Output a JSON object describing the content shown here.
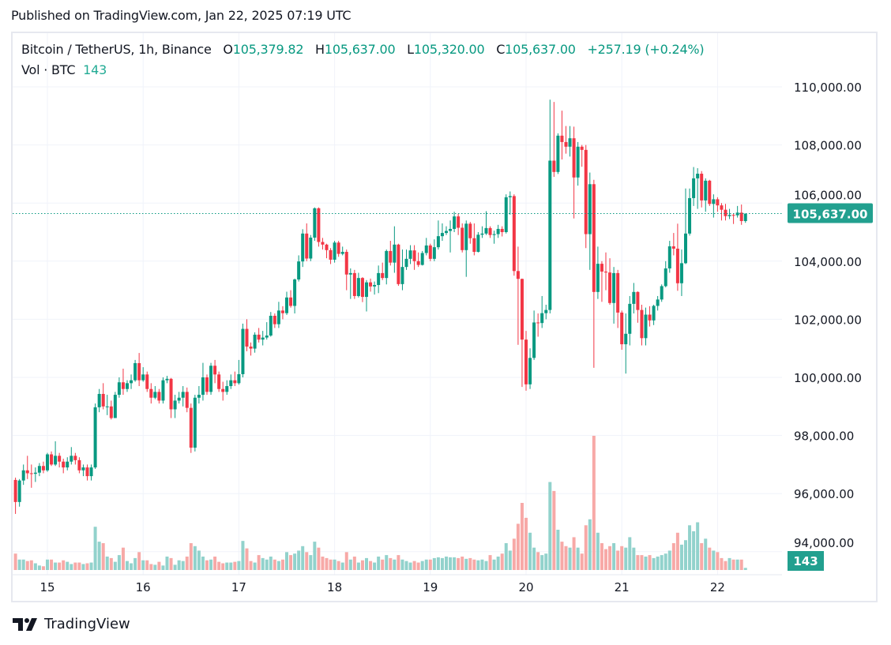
{
  "published": "Published on TradingView.com, Jan 22, 2025 07:19 UTC",
  "legend": {
    "symbol": "Bitcoin / TetherUS, 1h, Binance",
    "o_label": "O",
    "o_value": "105,379.82",
    "h_label": "H",
    "h_value": "105,637.00",
    "l_label": "L",
    "l_value": "105,320.00",
    "c_label": "C",
    "c_value": "105,637.00",
    "change": "+257.19 (+0.24%)",
    "vol_label": "Vol · BTC",
    "vol_value": "143"
  },
  "logo": {
    "text": "TradingView",
    "icon": "tradingview-logo-icon"
  },
  "colors": {
    "up": "#089981",
    "down": "#f23645",
    "vol_up": "#92d2cc",
    "vol_down": "#f7a9a7",
    "grid": "#f0f3fa",
    "badge": "#22a08f"
  },
  "chart_data": {
    "type": "candlestick",
    "interval": "1h",
    "x_ticks": [
      "15",
      "16",
      "17",
      "18",
      "19",
      "20",
      "21",
      "22"
    ],
    "y_ticks": [
      "110,000.00",
      "108,000.00",
      "106,000.00",
      "104,000.00",
      "102,000.00",
      "100,000.00",
      "98,000.00",
      "96,000.00",
      "94,000.00"
    ],
    "y_tick_values": [
      110000,
      108000,
      106000,
      104000,
      102000,
      100000,
      98000,
      96000,
      94000
    ],
    "last_price_label": "105,637.00",
    "last_price": 105637,
    "last_volume_label": "143",
    "grid": true,
    "columns": [
      "open",
      "high",
      "low",
      "close",
      "volume"
    ],
    "candles": [
      [
        96470,
        96550,
        95300,
        95710,
        1100
      ],
      [
        95710,
        96500,
        95550,
        96450,
        700
      ],
      [
        96450,
        97000,
        96300,
        96800,
        700
      ],
      [
        96800,
        97300,
        96500,
        96700,
        600
      ],
      [
        96700,
        97000,
        96200,
        96680,
        650
      ],
      [
        96680,
        96900,
        96400,
        96720,
        450
      ],
      [
        96720,
        97050,
        96600,
        96950,
        300
      ],
      [
        96950,
        97100,
        96700,
        96800,
        250
      ],
      [
        96800,
        97400,
        96750,
        97350,
        700
      ],
      [
        97350,
        97450,
        96950,
        97000,
        700
      ],
      [
        97000,
        97800,
        96950,
        97300,
        500
      ],
      [
        97300,
        97400,
        96900,
        97100,
        500
      ],
      [
        97100,
        97200,
        96700,
        96900,
        650
      ],
      [
        96900,
        97250,
        96800,
        97100,
        550
      ],
      [
        97100,
        97600,
        97000,
        97300,
        400
      ],
      [
        97300,
        97400,
        97000,
        97150,
        500
      ],
      [
        97150,
        97250,
        96700,
        96800,
        500
      ],
      [
        96800,
        97000,
        96600,
        96900,
        400
      ],
      [
        96900,
        97000,
        96450,
        96600,
        450
      ],
      [
        96600,
        97000,
        96450,
        96900,
        500
      ],
      [
        96900,
        99100,
        96850,
        98970,
        2900
      ],
      [
        98970,
        99600,
        98800,
        99430,
        1900
      ],
      [
        99430,
        99800,
        98900,
        99000,
        1800
      ],
      [
        99000,
        99400,
        98700,
        99000,
        900
      ],
      [
        99000,
        99200,
        98550,
        98600,
        800
      ],
      [
        98600,
        99500,
        98600,
        99400,
        550
      ],
      [
        99400,
        100000,
        99300,
        99830,
        1000
      ],
      [
        99830,
        100300,
        99400,
        99600,
        1500
      ],
      [
        99600,
        99900,
        99500,
        99800,
        600
      ],
      [
        99800,
        100100,
        99600,
        99900,
        450
      ],
      [
        99900,
        100600,
        99850,
        100490,
        800
      ],
      [
        100490,
        100840,
        99700,
        99900,
        1200
      ],
      [
        99900,
        100350,
        99850,
        100100,
        650
      ],
      [
        100100,
        100200,
        99500,
        99600,
        650
      ],
      [
        99600,
        99800,
        99100,
        99300,
        400
      ],
      [
        99300,
        99700,
        99250,
        99500,
        350
      ],
      [
        99500,
        99600,
        99100,
        99200,
        550
      ],
      [
        99200,
        100000,
        99100,
        99900,
        300
      ],
      [
        99900,
        100050,
        99800,
        99950,
        900
      ],
      [
        99950,
        99980,
        98600,
        98900,
        800
      ],
      [
        98900,
        99400,
        98600,
        99200,
        350
      ],
      [
        99200,
        99500,
        99100,
        99300,
        650
      ],
      [
        99300,
        99700,
        99000,
        99500,
        600
      ],
      [
        99500,
        99650,
        98800,
        98950,
        900
      ],
      [
        98950,
        99100,
        97400,
        97580,
        1800
      ],
      [
        97580,
        99400,
        97450,
        99300,
        1600
      ],
      [
        99300,
        99700,
        99100,
        99400,
        1300
      ],
      [
        99400,
        100500,
        99200,
        100000,
        900
      ],
      [
        100000,
        100100,
        99400,
        99500,
        650
      ],
      [
        99500,
        100500,
        99400,
        100400,
        700
      ],
      [
        100400,
        100600,
        99800,
        100100,
        900
      ],
      [
        100100,
        100200,
        99500,
        99600,
        550
      ],
      [
        99600,
        99850,
        99200,
        99500,
        450
      ],
      [
        99500,
        99900,
        99400,
        99700,
        500
      ],
      [
        99700,
        100100,
        99600,
        99900,
        500
      ],
      [
        99900,
        100200,
        99700,
        99800,
        550
      ],
      [
        99800,
        100600,
        99750,
        100110,
        600
      ],
      [
        100110,
        101850,
        100000,
        101670,
        1950
      ],
      [
        101670,
        102000,
        100900,
        101060,
        1450
      ],
      [
        101060,
        101200,
        100750,
        100990,
        600
      ],
      [
        100990,
        101550,
        100850,
        101470,
        500
      ],
      [
        101470,
        101700,
        101200,
        101300,
        1000
      ],
      [
        101300,
        101600,
        101100,
        101370,
        800
      ],
      [
        101370,
        101900,
        101300,
        101440,
        700
      ],
      [
        101440,
        102250,
        101400,
        102120,
        900
      ],
      [
        102120,
        102200,
        101700,
        101830,
        700
      ],
      [
        101830,
        102600,
        101700,
        102300,
        600
      ],
      [
        102300,
        102450,
        102000,
        102210,
        700
      ],
      [
        102210,
        102950,
        102150,
        102750,
        1200
      ],
      [
        102750,
        103000,
        102400,
        102460,
        1000
      ],
      [
        102460,
        103400,
        102200,
        103370,
        1100
      ],
      [
        103370,
        104200,
        103300,
        103990,
        1300
      ],
      [
        103990,
        105100,
        103800,
        104950,
        1600
      ],
      [
        104950,
        105300,
        104000,
        104090,
        1200
      ],
      [
        104090,
        104900,
        104000,
        104810,
        1000
      ],
      [
        104810,
        105850,
        104700,
        105820,
        1900
      ],
      [
        105820,
        105850,
        104500,
        104660,
        1500
      ],
      [
        104660,
        104800,
        104400,
        104570,
        900
      ],
      [
        104570,
        104600,
        104100,
        104380,
        800
      ],
      [
        104380,
        104450,
        103900,
        104050,
        700
      ],
      [
        104050,
        104700,
        103950,
        104640,
        700
      ],
      [
        104640,
        104700,
        104150,
        104250,
        600
      ],
      [
        104250,
        104500,
        104200,
        104320,
        500
      ],
      [
        104320,
        104400,
        103000,
        103540,
        1200
      ],
      [
        103540,
        103750,
        102700,
        103590,
        700
      ],
      [
        103590,
        103700,
        102700,
        102800,
        900
      ],
      [
        102800,
        103600,
        102750,
        103420,
        500
      ],
      [
        103420,
        103450,
        102590,
        102770,
        650
      ],
      [
        102770,
        103350,
        102270,
        103270,
        800
      ],
      [
        103270,
        103400,
        102950,
        103130,
        600
      ],
      [
        103130,
        103300,
        102850,
        103180,
        500
      ],
      [
        103180,
        103850,
        102900,
        103590,
        900
      ],
      [
        103590,
        103950,
        103350,
        103420,
        700
      ],
      [
        103420,
        104400,
        103200,
        104350,
        1000
      ],
      [
        104350,
        104700,
        103850,
        103950,
        800
      ],
      [
        103950,
        105200,
        103600,
        104570,
        700
      ],
      [
        104570,
        104600,
        103150,
        103210,
        1000
      ],
      [
        103210,
        104400,
        103000,
        103800,
        700
      ],
      [
        103800,
        104400,
        103700,
        104080,
        600
      ],
      [
        104080,
        104550,
        103900,
        104370,
        500
      ],
      [
        104370,
        104550,
        103700,
        104000,
        600
      ],
      [
        104000,
        104300,
        103800,
        103870,
        500
      ],
      [
        103870,
        104350,
        103850,
        104280,
        600
      ],
      [
        104280,
        104800,
        104200,
        104540,
        700
      ],
      [
        104540,
        104600,
        104000,
        104080,
        700
      ],
      [
        104080,
        104750,
        104000,
        104480,
        800
      ],
      [
        104480,
        105400,
        104400,
        104860,
        850
      ],
      [
        104860,
        105300,
        104700,
        104970,
        800
      ],
      [
        104970,
        105200,
        104900,
        105040,
        900
      ],
      [
        105040,
        105400,
        104300,
        105110,
        850
      ],
      [
        105110,
        105700,
        105000,
        105540,
        850
      ],
      [
        105540,
        105640,
        104900,
        105150,
        800
      ],
      [
        105150,
        105300,
        104300,
        104380,
        900
      ],
      [
        104380,
        105400,
        103460,
        105290,
        750
      ],
      [
        105290,
        105350,
        104600,
        104790,
        800
      ],
      [
        104790,
        105300,
        104200,
        104320,
        700
      ],
      [
        104320,
        105000,
        104300,
        104910,
        650
      ],
      [
        104910,
        105200,
        104800,
        104950,
        700
      ],
      [
        104950,
        105720,
        104900,
        105140,
        600
      ],
      [
        105140,
        105200,
        104800,
        104900,
        1000
      ],
      [
        104900,
        105050,
        104600,
        104930,
        700
      ],
      [
        104930,
        105250,
        104800,
        105110,
        900
      ],
      [
        105110,
        105200,
        104850,
        105000,
        1100
      ],
      [
        105000,
        106300,
        104950,
        106200,
        1800
      ],
      [
        106200,
        106400,
        105600,
        106240,
        1300
      ],
      [
        106240,
        106300,
        103500,
        103660,
        2100
      ],
      [
        103660,
        104500,
        101120,
        103390,
        3100
      ],
      [
        103390,
        103400,
        99670,
        101300,
        4500
      ],
      [
        101300,
        101600,
        99540,
        99760,
        3500
      ],
      [
        99760,
        101000,
        99600,
        100670,
        2500
      ],
      [
        100670,
        102300,
        100600,
        101890,
        1500
      ],
      [
        101890,
        102200,
        101400,
        101870,
        1200
      ],
      [
        101870,
        102800,
        101700,
        102210,
        1000
      ],
      [
        102210,
        102500,
        102000,
        102320,
        1100
      ],
      [
        102320,
        109560,
        102200,
        107460,
        5900
      ],
      [
        107460,
        109480,
        106900,
        107070,
        5300
      ],
      [
        107070,
        108400,
        107000,
        108320,
        2700
      ],
      [
        108320,
        109180,
        107500,
        108100,
        1900
      ],
      [
        108100,
        108650,
        107700,
        107940,
        1600
      ],
      [
        107940,
        108650,
        107600,
        108230,
        1500
      ],
      [
        108230,
        108630,
        105470,
        106880,
        2200
      ],
      [
        106880,
        108100,
        106600,
        107940,
        1500
      ],
      [
        107940,
        108000,
        107250,
        107830,
        1100
      ],
      [
        107830,
        108000,
        104450,
        104930,
        3000
      ],
      [
        104930,
        107050,
        103700,
        106650,
        3400
      ],
      [
        106650,
        106800,
        100330,
        102940,
        9000
      ],
      [
        102940,
        104500,
        102700,
        103910,
        2500
      ],
      [
        103910,
        104000,
        102600,
        103640,
        1800
      ],
      [
        103640,
        104300,
        103000,
        103610,
        1400
      ],
      [
        103610,
        104100,
        102500,
        102560,
        1600
      ],
      [
        102560,
        103800,
        101850,
        103590,
        1800
      ],
      [
        103590,
        103700,
        101700,
        102230,
        1300
      ],
      [
        102230,
        102300,
        100950,
        101140,
        1600
      ],
      [
        101140,
        102200,
        100130,
        101500,
        1500
      ],
      [
        101500,
        102800,
        101100,
        102530,
        2200
      ],
      [
        102530,
        103250,
        102200,
        102940,
        1500
      ],
      [
        102940,
        102960,
        101880,
        102320,
        1000
      ],
      [
        102320,
        102500,
        101100,
        101350,
        1000
      ],
      [
        101350,
        102400,
        101100,
        102160,
        900
      ],
      [
        102160,
        102450,
        101750,
        101960,
        1000
      ],
      [
        101960,
        102500,
        101800,
        102460,
        800
      ],
      [
        102460,
        102800,
        102300,
        102680,
        900
      ],
      [
        102680,
        103200,
        102600,
        103140,
        1000
      ],
      [
        103140,
        104000,
        103100,
        103750,
        1100
      ],
      [
        103750,
        104700,
        103600,
        104510,
        1300
      ],
      [
        104510,
        104970,
        104200,
        104430,
        1800
      ],
      [
        104430,
        105290,
        102980,
        103240,
        2500
      ],
      [
        103240,
        104400,
        102800,
        103930,
        1700
      ],
      [
        103930,
        106500,
        103900,
        104950,
        2000
      ],
      [
        104950,
        106500,
        104880,
        106170,
        3000
      ],
      [
        106170,
        107240,
        105900,
        106850,
        2600
      ],
      [
        106850,
        107200,
        105800,
        107010,
        3200
      ],
      [
        107010,
        107100,
        105850,
        106090,
        1800
      ],
      [
        106090,
        106850,
        105700,
        106770,
        2100
      ],
      [
        106770,
        106800,
        105900,
        105970,
        1500
      ],
      [
        105970,
        106300,
        105500,
        106130,
        1300
      ],
      [
        106130,
        106200,
        105700,
        105920,
        1200
      ],
      [
        105920,
        106000,
        105400,
        105770,
        800
      ],
      [
        105770,
        105970,
        105400,
        105550,
        600
      ],
      [
        105550,
        105800,
        105450,
        105590,
        800
      ],
      [
        105590,
        105630,
        105280,
        105580,
        700
      ],
      [
        105580,
        105900,
        105500,
        105670,
        700
      ],
      [
        105670,
        105950,
        105250,
        105380,
        700
      ],
      [
        105379.82,
        105637,
        105320,
        105637,
        143
      ]
    ]
  }
}
